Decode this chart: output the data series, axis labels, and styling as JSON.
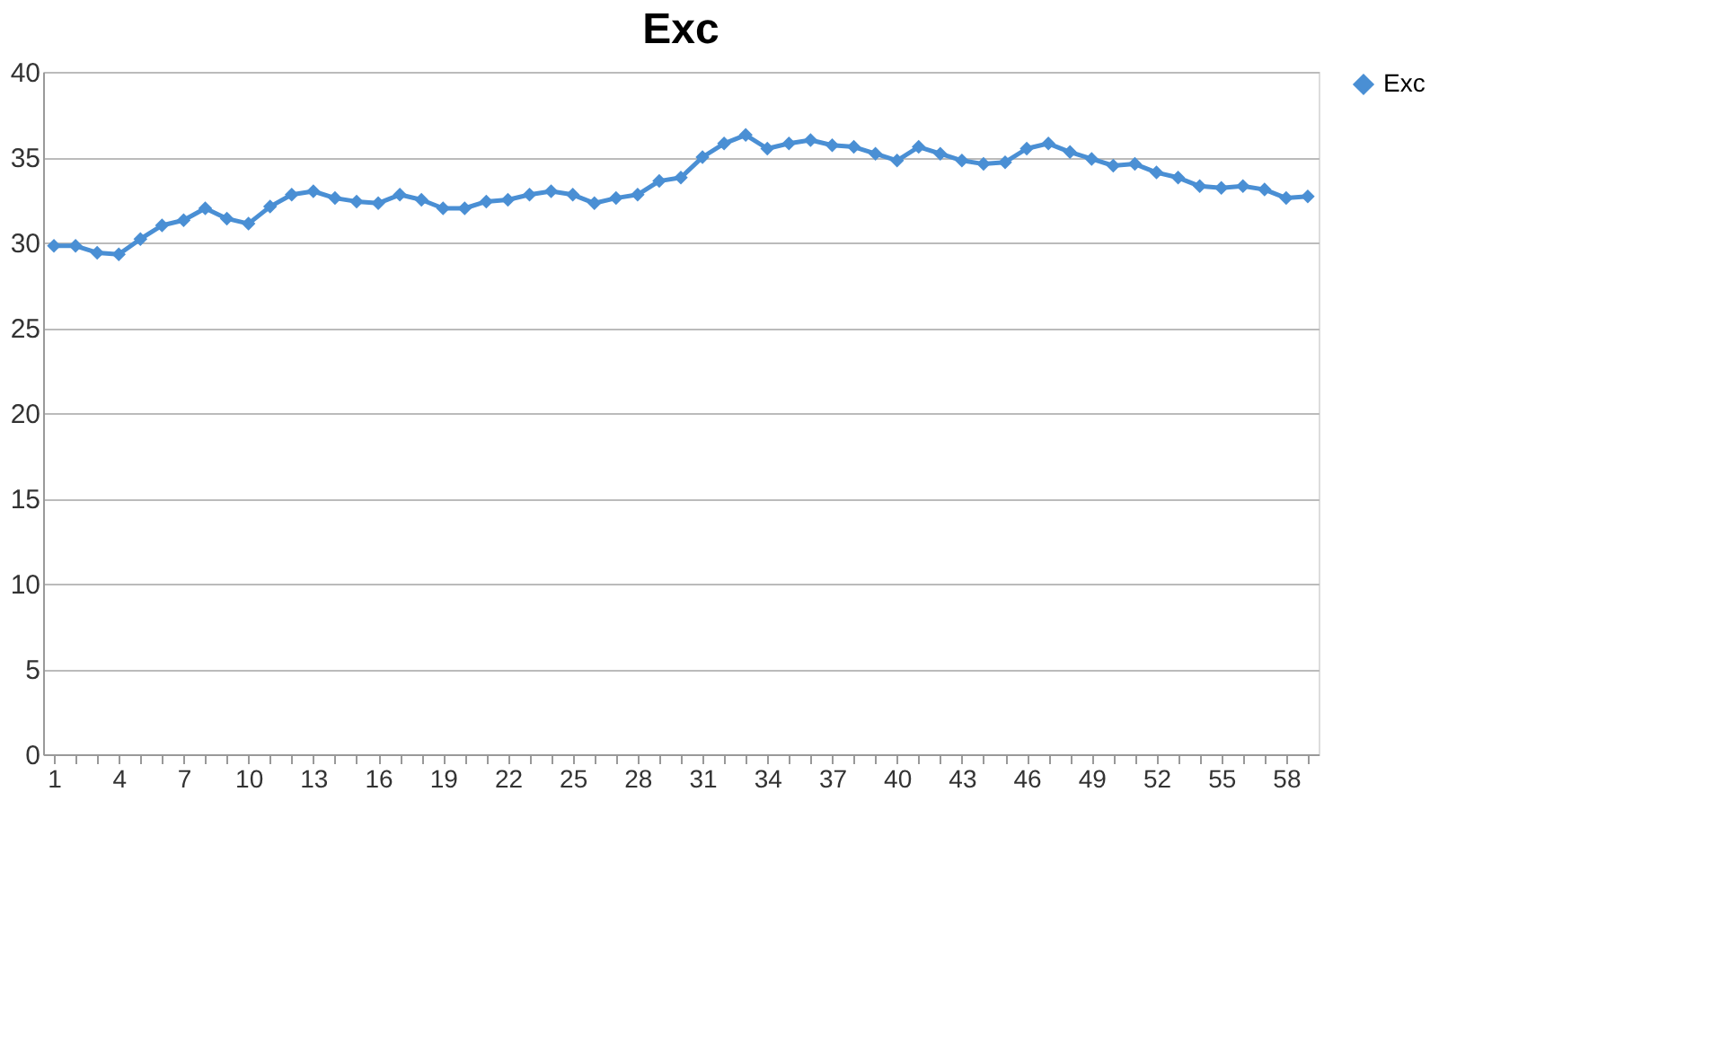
{
  "chart_data": {
    "type": "line",
    "title": "Exc",
    "categories": [
      "1",
      null,
      null,
      "4",
      null,
      null,
      "7",
      null,
      null,
      "10",
      null,
      null,
      "13",
      null,
      null,
      "16",
      null,
      null,
      "19",
      null,
      null,
      "22",
      null,
      null,
      "25",
      null,
      null,
      "28",
      null,
      null,
      "31",
      null,
      null,
      "34",
      null,
      null,
      "37",
      null,
      null,
      "40",
      null,
      null,
      "43",
      null,
      null,
      "46",
      null,
      null,
      "49",
      null,
      null,
      "52",
      null,
      null,
      "55",
      null,
      null,
      "58",
      null
    ],
    "series": [
      {
        "name": "Exc",
        "color": "#4a8fd4",
        "values": [
          29.8,
          29.8,
          29.4,
          29.3,
          30.2,
          31.0,
          31.3,
          32.0,
          31.4,
          31.1,
          32.1,
          32.8,
          33.0,
          32.6,
          32.4,
          32.3,
          32.8,
          32.5,
          32.0,
          32.0,
          32.4,
          32.5,
          32.8,
          33.0,
          32.8,
          32.3,
          32.6,
          32.8,
          33.6,
          33.8,
          35.0,
          35.8,
          36.3,
          35.5,
          35.8,
          36.0,
          35.7,
          35.6,
          35.2,
          34.8,
          35.6,
          35.2,
          34.8,
          34.6,
          34.7,
          35.5,
          35.8,
          35.3,
          34.9,
          34.5,
          34.6,
          34.1,
          33.8,
          33.3,
          33.2,
          33.3,
          33.1,
          32.6,
          32.7
        ]
      }
    ],
    "ylim": [
      0,
      40
    ],
    "yticks": [
      0,
      5,
      10,
      15,
      20,
      25,
      30,
      35,
      40
    ],
    "grid": "y",
    "legend": "right",
    "marker": "diamond",
    "line_style": "solid"
  }
}
